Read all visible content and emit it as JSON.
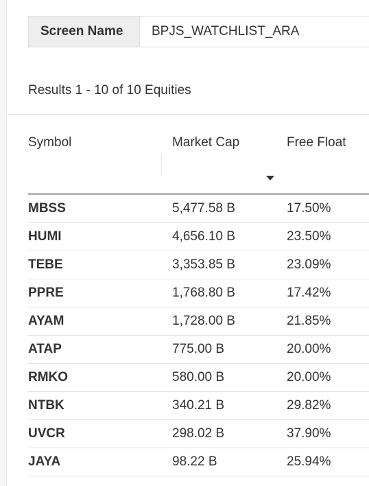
{
  "screen": {
    "label": "Screen Name",
    "value": "BPJS_WATCHLIST_ARA"
  },
  "results_text": "Results 1 - 10 of 10 Equities",
  "columns": [
    "Symbol",
    "Market Cap",
    "Free Float"
  ],
  "sort": {
    "column": "Market Cap",
    "direction": "descending",
    "icon": "caret-down-icon"
  },
  "rows": [
    {
      "symbol": "MBSS",
      "market_cap": "5,477.58 B",
      "free_float": "17.50%"
    },
    {
      "symbol": "HUMI",
      "market_cap": "4,656.10 B",
      "free_float": "23.50%"
    },
    {
      "symbol": "TEBE",
      "market_cap": "3,353.85 B",
      "free_float": "23.09%"
    },
    {
      "symbol": "PPRE",
      "market_cap": "1,768.80 B",
      "free_float": "17.42%"
    },
    {
      "symbol": "AYAM",
      "market_cap": "1,728.00 B",
      "free_float": "21.85%"
    },
    {
      "symbol": "ATAP",
      "market_cap": "775.00 B",
      "free_float": "20.00%"
    },
    {
      "symbol": "RMKO",
      "market_cap": "580.00 B",
      "free_float": "20.00%"
    },
    {
      "symbol": "NTBK",
      "market_cap": "340.21 B",
      "free_float": "29.82%"
    },
    {
      "symbol": "UVCR",
      "market_cap": "298.02 B",
      "free_float": "37.90%"
    },
    {
      "symbol": "JAYA",
      "market_cap": "98.22 B",
      "free_float": "25.94%"
    }
  ]
}
